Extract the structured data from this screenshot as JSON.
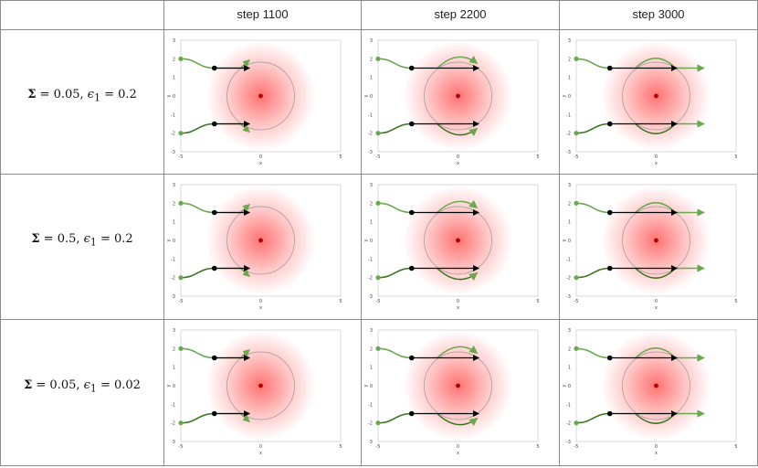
{
  "columns": [
    "step 1100",
    "step 2200",
    "step 3000"
  ],
  "rows": [
    {
      "sigma_symbol": "Σ",
      "eq1": " = 0.05, ",
      "eps_symbol": "ϵ",
      "eps_sub": "1",
      "eq2": " = 0.2"
    },
    {
      "sigma_symbol": "Σ",
      "eq1": " = 0.5, ",
      "eps_symbol": "ϵ",
      "eps_sub": "1",
      "eq2": " = 0.2"
    },
    {
      "sigma_symbol": "Σ",
      "eq1": " = 0.05, ",
      "eps_symbol": "ϵ",
      "eps_sub": "1",
      "eq2": " = 0.02"
    }
  ],
  "plot": {
    "xlabel": "x",
    "ylabel": "y",
    "xticks": [
      "-5",
      "0",
      "5"
    ],
    "yticks": [
      "3",
      "2",
      "1",
      "0",
      "-1",
      "-2",
      "-3"
    ],
    "colors": {
      "trajectory": "#6aa84f",
      "trajectory_dark": "#38761d",
      "arrow": "#000000",
      "obstacle": "#ff0000",
      "circle": "#999999"
    }
  }
}
